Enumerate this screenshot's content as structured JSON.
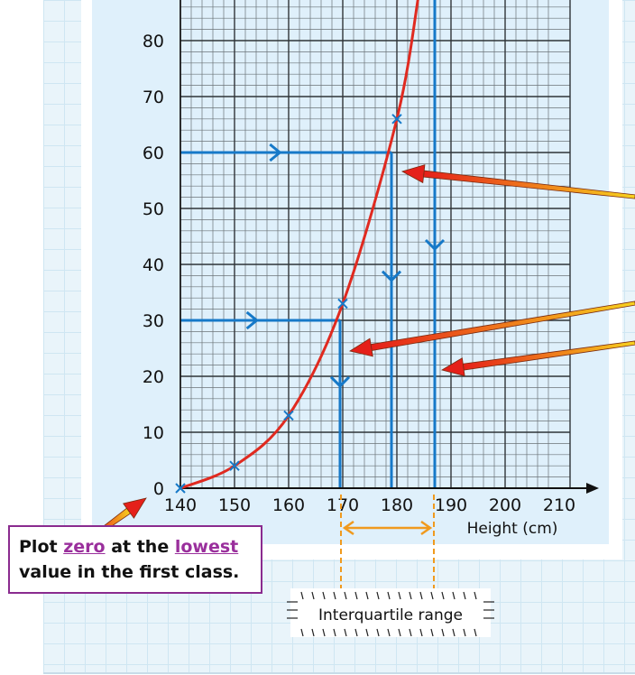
{
  "chart_data": {
    "type": "line",
    "xlabel": "Height (cm)",
    "x_ticks": [
      140,
      150,
      160,
      170,
      180,
      190,
      200,
      210
    ],
    "y_ticks": [
      0,
      10,
      20,
      30,
      40,
      50,
      60,
      70,
      80
    ],
    "xlim": [
      140,
      212
    ],
    "ylim": [
      0,
      88
    ],
    "grid": true,
    "points": [
      {
        "x": 140,
        "y": 0
      },
      {
        "x": 150,
        "y": 4
      },
      {
        "x": 160,
        "y": 13
      },
      {
        "x": 170,
        "y": 33
      },
      {
        "x": 180,
        "y": 66
      }
    ],
    "curve": [
      {
        "x": 140,
        "y": 0
      },
      {
        "x": 150,
        "y": 4
      },
      {
        "x": 160,
        "y": 13
      },
      {
        "x": 170,
        "y": 33
      },
      {
        "x": 180,
        "y": 66
      },
      {
        "x": 184,
        "y": 88
      }
    ],
    "reading_lines": [
      {
        "y": 60,
        "x": 179
      },
      {
        "y": 30,
        "x": 169.5
      },
      {
        "y": 90,
        "x": 187
      }
    ],
    "annotation": "Interquartile range",
    "colors": {
      "curve": "#e02a20",
      "reading": "#1679c8",
      "plot_bg": "#dff0fb",
      "grid_minor": "#3a3f44",
      "range_arrow": "#f09a1e",
      "pointer": "#e84a1a"
    }
  },
  "note": {
    "part1": "Plot ",
    "word1": "zero",
    "part2": " at the ",
    "word2": "lowest",
    "line2": "value in the first class."
  }
}
